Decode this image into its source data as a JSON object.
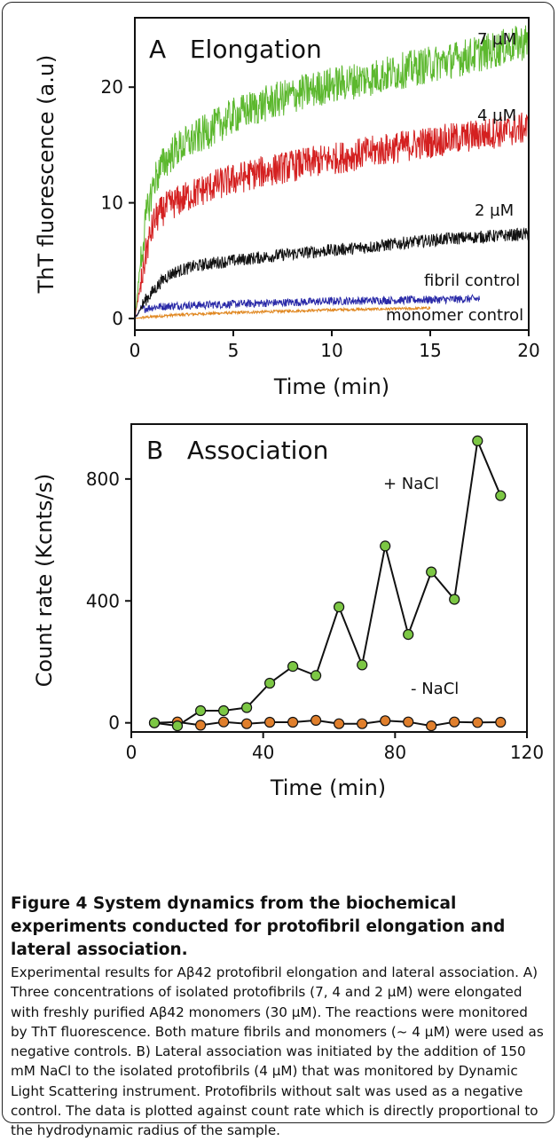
{
  "chart_data": [
    {
      "type": "line",
      "title": "A   Elongation",
      "xlabel": "Time (min)",
      "ylabel": "ThT fluorescence (a.u)",
      "xlim": [
        0,
        20
      ],
      "ylim": [
        -1,
        26
      ],
      "xticks": [
        0,
        5,
        10,
        15,
        20
      ],
      "yticks": [
        0,
        10,
        20
      ],
      "grid": false,
      "legend": "none",
      "series": [
        {
          "name": "7 µM",
          "color": "#5cb82e",
          "x": [
            0,
            0.3,
            0.6,
            1,
            1.5,
            2,
            3,
            4,
            5,
            6,
            8,
            10,
            12,
            14,
            16,
            18,
            20
          ],
          "y": [
            0,
            5,
            9,
            12,
            13.5,
            14.5,
            15.5,
            16.5,
            17.5,
            18.2,
            19.3,
            20.2,
            20.8,
            21.6,
            22.3,
            23.1,
            24
          ]
        },
        {
          "name": "4 µM",
          "color": "#d42020",
          "x": [
            0,
            0.3,
            0.6,
            1,
            1.5,
            2,
            3,
            4,
            5,
            6,
            8,
            10,
            12,
            14,
            16,
            18,
            20
          ],
          "y": [
            0,
            3,
            6,
            8.5,
            9.5,
            10,
            10.8,
            11.5,
            12,
            12.5,
            13.2,
            13.8,
            14.4,
            15,
            15.5,
            16,
            16.5
          ]
        },
        {
          "name": "2 µM",
          "color": "#111111",
          "x": [
            0,
            0.5,
            1,
            1.5,
            2,
            3,
            4,
            5,
            6,
            8,
            10,
            12,
            14,
            16,
            18,
            20
          ],
          "y": [
            0,
            1.5,
            2.5,
            3.5,
            4,
            4.5,
            4.8,
            5,
            5.2,
            5.6,
            5.9,
            6.2,
            6.6,
            6.9,
            7.1,
            7.3
          ]
        },
        {
          "name": "fibril control",
          "color": "#2a2aa8",
          "x": [
            0,
            0.3,
            1,
            2,
            4,
            6,
            8,
            10,
            12,
            14,
            16,
            17.5
          ],
          "y": [
            0,
            0.8,
            1,
            1.1,
            1.2,
            1.3,
            1.4,
            1.5,
            1.55,
            1.6,
            1.65,
            1.7
          ]
        },
        {
          "name": "monomer control",
          "color": "#e0861e",
          "x": [
            0,
            0.5,
            2,
            4,
            6,
            8,
            10,
            12,
            14,
            15
          ],
          "y": [
            0,
            0.1,
            0.3,
            0.45,
            0.55,
            0.65,
            0.75,
            0.8,
            0.85,
            0.9
          ]
        }
      ]
    },
    {
      "type": "line",
      "title": "B   Association",
      "xlabel": "Time (min)",
      "ylabel": "Count rate (Kcnts/s)",
      "xlim": [
        0,
        120
      ],
      "ylim": [
        -30,
        980
      ],
      "xticks": [
        0,
        40,
        80,
        120
      ],
      "yticks": [
        0,
        400,
        800
      ],
      "grid": false,
      "legend": "none",
      "series": [
        {
          "name": "+ NaCl",
          "color": "#7cc744",
          "x": [
            7,
            14,
            21,
            28,
            35,
            42,
            49,
            56,
            63,
            70,
            77,
            84,
            91,
            98,
            105,
            112
          ],
          "y": [
            0,
            -10,
            40,
            40,
            50,
            130,
            185,
            155,
            380,
            190,
            580,
            290,
            495,
            405,
            925,
            745
          ]
        },
        {
          "name": "- NaCl",
          "color": "#e07f2c",
          "x": [
            7,
            14,
            21,
            28,
            35,
            42,
            49,
            56,
            63,
            70,
            77,
            84,
            91,
            98,
            105,
            112
          ],
          "y": [
            0,
            3,
            -8,
            3,
            -3,
            2,
            2,
            8,
            -3,
            -3,
            7,
            3,
            -10,
            3,
            1,
            2
          ]
        }
      ]
    }
  ],
  "annotations_a": {
    "c7": "7 µM",
    "c4": "4 µM",
    "c2": "2 µM",
    "fibril": "fibril control",
    "monomer": "monomer control"
  },
  "annotations_b": {
    "plus": "+ NaCl",
    "minus": "- NaCl"
  },
  "caption": {
    "title": "Figure 4 System dynamics from the biochemical experiments conducted for protofibril elongation and lateral association.",
    "body": "Experimental results for Aβ42 protofibril elongation and lateral association. A) Three concentrations of isolated protofibrils (7, 4 and 2 µM) were elongated with freshly purified Aβ42 monomers (30 µM). The reactions were monitored by ThT fluorescence. Both mature fibrils and monomers (~ 4 µM) were used as negative controls. B) Lateral association was initiated by the addition of 150 mM NaCl to the isolated protofibrils (4 µM) that was monitored by Dynamic Light Scattering instrument. Protofibrils without salt was used as a negative control. The data is plotted against count rate which is directly proportional to the hydrodynamic radius of the sample."
  }
}
